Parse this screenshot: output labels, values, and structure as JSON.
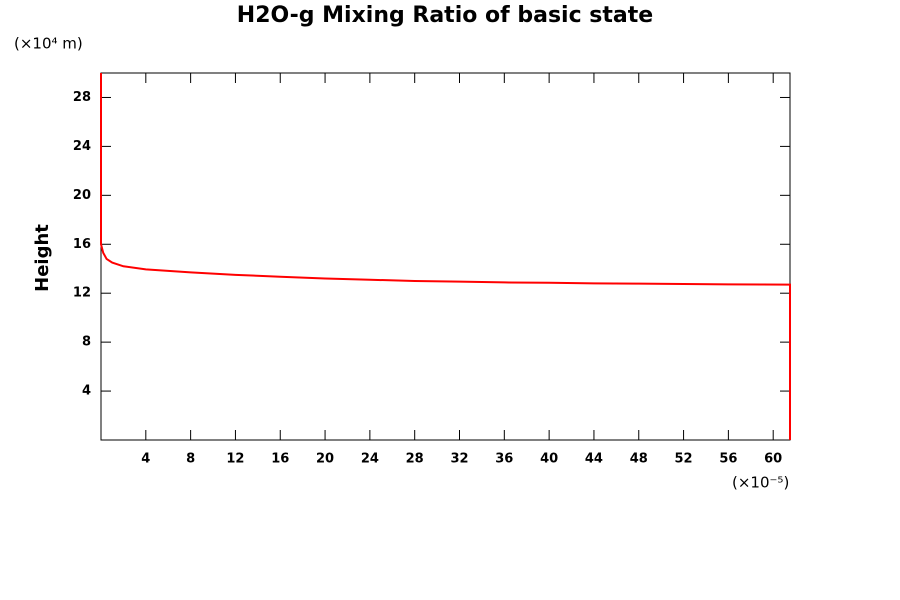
{
  "chart_data": {
    "type": "line",
    "title": "H2O-g Mixing Ratio of basic state",
    "y_label": "Height",
    "y_unit": "(×10⁴ m)",
    "x_unit": "(×10⁻⁵)",
    "xlim": [
      0,
      61.5
    ],
    "ylim": [
      0,
      30
    ],
    "xticks": [
      4,
      8,
      12,
      16,
      20,
      24,
      28,
      32,
      36,
      40,
      44,
      48,
      52,
      56,
      60
    ],
    "yticks": [
      4,
      8,
      12,
      16,
      20,
      24,
      28
    ],
    "grid": false,
    "series": [
      {
        "color": "#ff0000",
        "x": [
          0,
          0,
          0.2,
          0.5,
          1,
          2,
          4,
          8,
          12,
          16,
          20,
          24,
          28,
          32,
          36,
          40,
          44,
          48,
          52,
          56,
          61.5,
          61.5
        ],
        "values": [
          30,
          16,
          15.3,
          14.8,
          14.5,
          14.2,
          13.95,
          13.7,
          13.5,
          13.35,
          13.2,
          13.1,
          13.0,
          12.95,
          12.88,
          12.85,
          12.8,
          12.78,
          12.75,
          12.72,
          12.7,
          0
        ]
      }
    ]
  }
}
